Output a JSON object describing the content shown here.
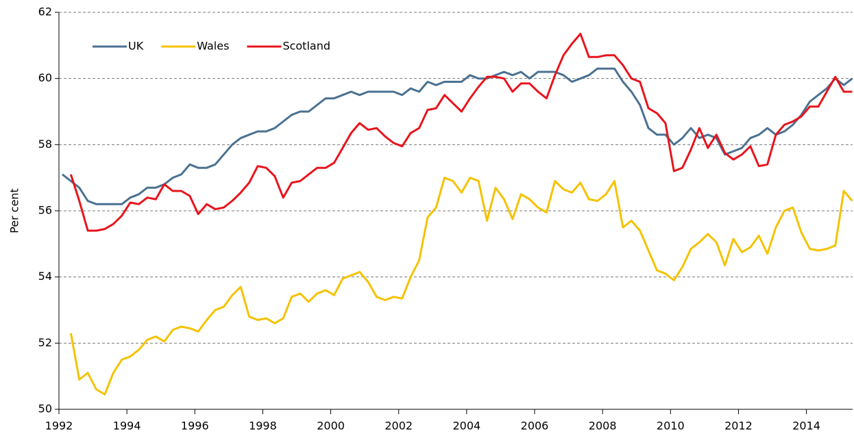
{
  "chart_data": {
    "type": "line",
    "y_label": "Per cent",
    "x": [
      1992.1,
      1992.35,
      1992.6,
      1992.85,
      1993.1,
      1993.35,
      1993.6,
      1993.85,
      1994.1,
      1994.35,
      1994.6,
      1994.85,
      1995.1,
      1995.35,
      1995.6,
      1995.85,
      1996.1,
      1996.35,
      1996.6,
      1996.85,
      1997.1,
      1997.35,
      1997.6,
      1997.85,
      1998.1,
      1998.35,
      1998.6,
      1998.85,
      1999.1,
      1999.35,
      1999.6,
      1999.85,
      2000.1,
      2000.35,
      2000.6,
      2000.85,
      2001.1,
      2001.35,
      2001.6,
      2001.85,
      2002.1,
      2002.35,
      2002.6,
      2002.85,
      2003.1,
      2003.35,
      2003.6,
      2003.85,
      2004.1,
      2004.35,
      2004.6,
      2004.85,
      2005.1,
      2005.35,
      2005.6,
      2005.85,
      2006.1,
      2006.35,
      2006.6,
      2006.85,
      2007.1,
      2007.35,
      2007.6,
      2007.85,
      2008.1,
      2008.35,
      2008.6,
      2008.85,
      2009.1,
      2009.35,
      2009.6,
      2009.85,
      2010.1,
      2010.35,
      2010.6,
      2010.85,
      2011.1,
      2011.35,
      2011.6,
      2011.85,
      2012.1,
      2012.35,
      2012.6,
      2012.85,
      2013.1,
      2013.35,
      2013.6,
      2013.85,
      2014.1,
      2014.35,
      2014.6,
      2014.85,
      2015.1,
      2015.35
    ],
    "series": [
      {
        "name": "UK",
        "color": "#4a7191",
        "values": [
          57.1,
          56.9,
          56.7,
          56.3,
          56.2,
          56.2,
          56.2,
          56.2,
          56.4,
          56.5,
          56.7,
          56.7,
          56.8,
          57.0,
          57.1,
          57.4,
          57.3,
          57.3,
          57.4,
          57.7,
          58.0,
          58.2,
          58.3,
          58.4,
          58.4,
          58.5,
          58.7,
          58.9,
          59.0,
          59.0,
          59.2,
          59.4,
          59.4,
          59.5,
          59.6,
          59.5,
          59.6,
          59.6,
          59.6,
          59.6,
          59.5,
          59.7,
          59.6,
          59.9,
          59.8,
          59.9,
          59.9,
          59.9,
          60.1,
          60.0,
          60.0,
          60.1,
          60.2,
          60.1,
          60.2,
          60.0,
          60.2,
          60.2,
          60.2,
          60.1,
          59.9,
          60.0,
          60.1,
          60.3,
          60.3,
          60.3,
          59.9,
          59.6,
          59.2,
          58.5,
          58.3,
          58.3,
          58.0,
          58.2,
          58.5,
          58.2,
          58.3,
          58.2,
          57.7,
          57.8,
          57.9,
          58.2,
          58.3,
          58.5,
          58.3,
          58.4,
          58.6,
          58.9,
          59.3,
          59.5,
          59.7,
          60.0,
          59.8,
          60.0
        ]
      },
      {
        "name": "Wales",
        "color": "#f5c200",
        "values": [
          null,
          52.3,
          50.9,
          51.1,
          50.6,
          50.45,
          51.1,
          51.5,
          51.6,
          51.8,
          52.1,
          52.2,
          52.05,
          52.4,
          52.5,
          52.45,
          52.35,
          52.7,
          53.0,
          53.1,
          53.45,
          53.7,
          52.8,
          52.7,
          52.75,
          52.6,
          52.75,
          53.4,
          53.5,
          53.25,
          53.5,
          53.6,
          53.45,
          53.95,
          54.05,
          54.15,
          53.85,
          53.4,
          53.3,
          53.4,
          53.35,
          54.0,
          54.5,
          55.8,
          56.1,
          57.0,
          56.9,
          56.55,
          57.0,
          56.9,
          55.7,
          56.7,
          56.35,
          55.75,
          56.5,
          56.35,
          56.1,
          55.95,
          56.9,
          56.65,
          56.55,
          56.85,
          56.35,
          56.3,
          56.5,
          56.9,
          55.5,
          55.7,
          55.4,
          54.8,
          54.2,
          54.1,
          53.9,
          54.3,
          54.85,
          55.05,
          55.3,
          55.05,
          54.35,
          55.15,
          54.75,
          54.9,
          55.25,
          54.7,
          55.5,
          56.0,
          56.1,
          55.35,
          54.85,
          54.8,
          54.85,
          54.95,
          56.6,
          56.3
        ]
      },
      {
        "name": "Scotland",
        "color": "#e8141c",
        "values": [
          null,
          57.1,
          56.3,
          55.4,
          55.4,
          55.45,
          55.6,
          55.85,
          56.25,
          56.2,
          56.4,
          56.35,
          56.8,
          56.6,
          56.6,
          56.45,
          55.9,
          56.2,
          56.05,
          56.1,
          56.3,
          56.55,
          56.85,
          57.35,
          57.3,
          57.05,
          56.4,
          56.85,
          56.9,
          57.1,
          57.3,
          57.3,
          57.45,
          57.9,
          58.35,
          58.65,
          58.45,
          58.5,
          58.25,
          58.05,
          57.95,
          58.35,
          58.5,
          59.05,
          59.1,
          59.5,
          59.25,
          59.0,
          59.4,
          59.75,
          60.05,
          60.05,
          60.0,
          59.6,
          59.85,
          59.85,
          59.6,
          59.4,
          60.1,
          60.7,
          61.05,
          61.35,
          60.65,
          60.65,
          60.7,
          60.7,
          60.4,
          60.0,
          59.9,
          59.1,
          58.95,
          58.65,
          57.2,
          57.3,
          57.85,
          58.5,
          57.9,
          58.3,
          57.75,
          57.55,
          57.7,
          57.95,
          57.35,
          57.4,
          58.3,
          58.6,
          58.7,
          58.85,
          59.15,
          59.15,
          59.6,
          60.05,
          59.6,
          59.6
        ]
      }
    ],
    "xlim": [
      1992,
      2015.36
    ],
    "xticks": [
      1992,
      1994,
      1996,
      1998,
      2000,
      2002,
      2004,
      2006,
      2008,
      2010,
      2012,
      2014
    ],
    "ylim": [
      50,
      62
    ],
    "yticks": [
      50,
      52,
      54,
      56,
      58,
      60,
      62
    ],
    "grid": true,
    "legend": "top-left"
  }
}
